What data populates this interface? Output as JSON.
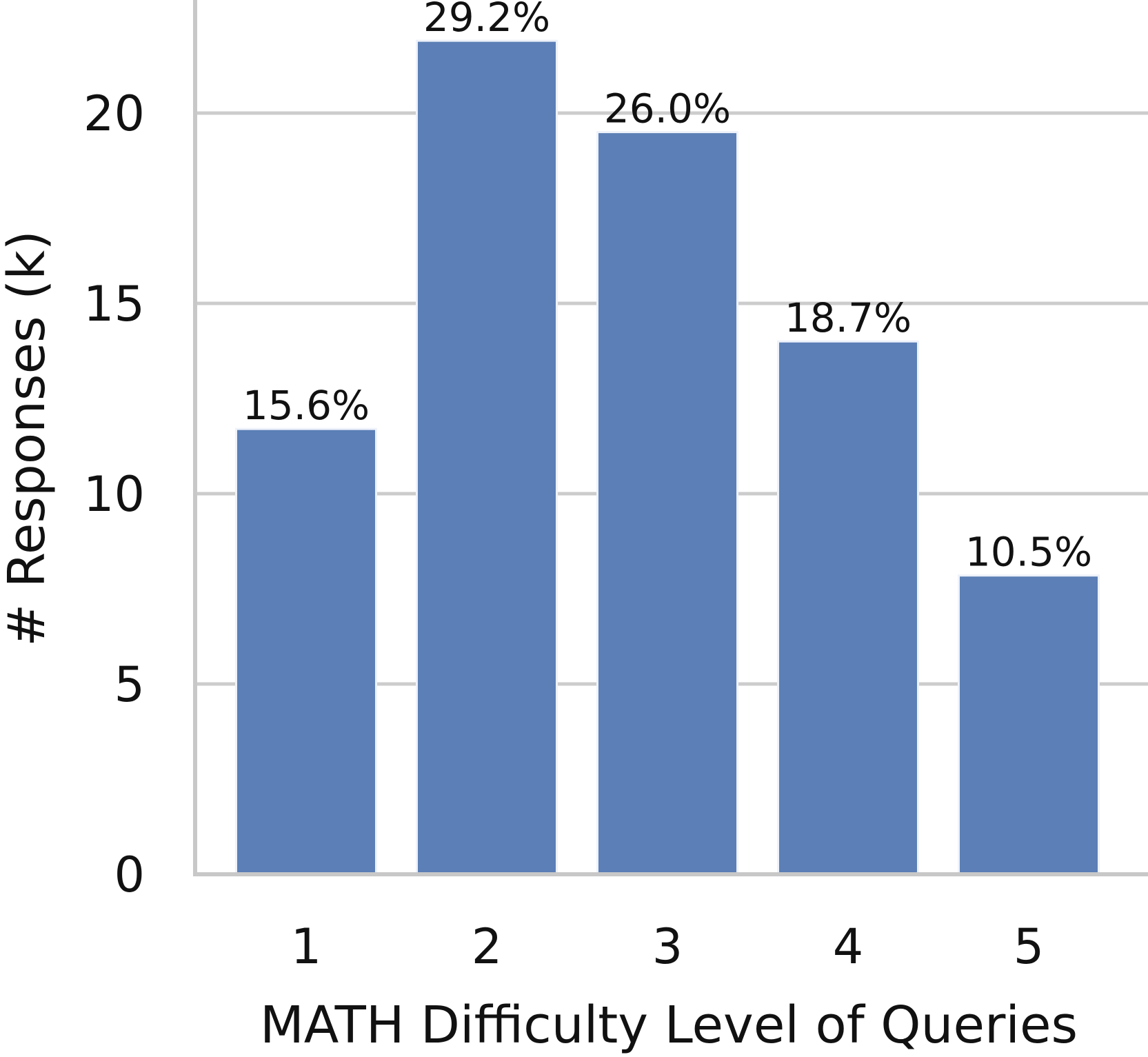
{
  "chart_data": {
    "type": "bar",
    "title": "",
    "xlabel": "MATH Difficulty Level of Queries",
    "ylabel": "# Responses (k)",
    "categories": [
      "1",
      "2",
      "3",
      "4",
      "5"
    ],
    "values": [
      11.7,
      21.9,
      19.5,
      14.0,
      7.85
    ],
    "data_labels": [
      "15.6%",
      "29.2%",
      "26.0%",
      "18.7%",
      "10.5%"
    ],
    "yticks": [
      0,
      5,
      10,
      15,
      20
    ],
    "ylim": [
      0,
      23.1
    ],
    "grid": "horizontal",
    "bar_color": "#5b7fb6",
    "grid_color": "#cccccc",
    "axis_color": "#c8c8c8"
  }
}
